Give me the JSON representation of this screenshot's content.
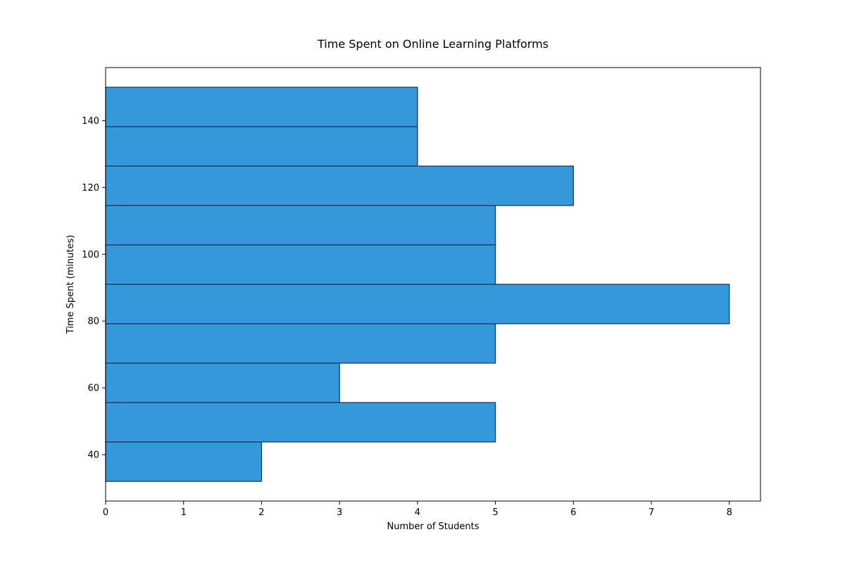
{
  "chart_data": {
    "type": "bar",
    "orientation": "horizontal-histogram",
    "title": "Time Spent on Online Learning Platforms",
    "xlabel": "Number of Students",
    "ylabel": "Time Spent (minutes)",
    "xlim": [
      0,
      8.4
    ],
    "ylim": [
      26.1,
      155.9
    ],
    "xticks": [
      0,
      1,
      2,
      3,
      4,
      5,
      6,
      7,
      8
    ],
    "yticks": [
      40,
      60,
      80,
      100,
      120,
      140
    ],
    "bins": [
      {
        "start": 32.0,
        "end": 43.8,
        "count": 2
      },
      {
        "start": 43.8,
        "end": 55.6,
        "count": 5
      },
      {
        "start": 55.6,
        "end": 67.4,
        "count": 3
      },
      {
        "start": 67.4,
        "end": 79.2,
        "count": 5
      },
      {
        "start": 79.2,
        "end": 91.0,
        "count": 8
      },
      {
        "start": 91.0,
        "end": 102.8,
        "count": 5
      },
      {
        "start": 102.8,
        "end": 114.6,
        "count": 5
      },
      {
        "start": 114.6,
        "end": 126.4,
        "count": 6
      },
      {
        "start": 126.4,
        "end": 138.2,
        "count": 4
      },
      {
        "start": 138.2,
        "end": 150.0,
        "count": 4
      }
    ],
    "bar_color": "#3498db",
    "edge_color": "#1f3a52",
    "grid": false,
    "legend": "none"
  }
}
